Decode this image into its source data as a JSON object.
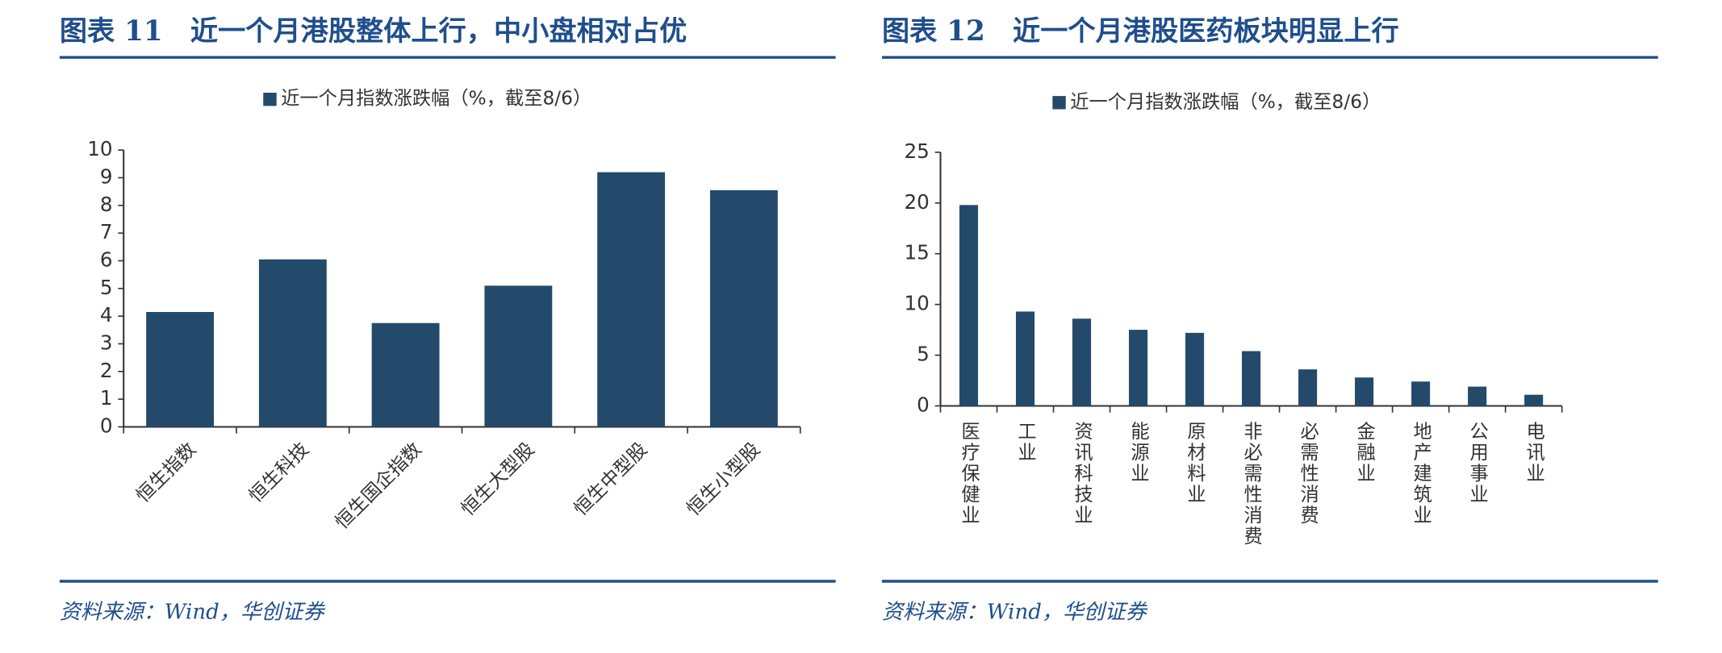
{
  "chart_data": [
    {
      "type": "bar",
      "title": "图表 11　近一个月港股整体上行，中小盘相对占优",
      "source": "资料来源：Wind，华创证券",
      "categories": [
        "恒生指数",
        "恒生科技",
        "恒生国企指数",
        "恒生大型股",
        "恒生中型股",
        "恒生小型股"
      ],
      "series": [
        {
          "name": "近一个月指数涨跌幅（%，截至8/6）",
          "color": "#244a6b",
          "values": [
            4.15,
            6.05,
            3.75,
            5.1,
            9.2,
            8.55
          ]
        }
      ],
      "ylim": [
        0,
        10
      ],
      "yticks": [
        0,
        1,
        2,
        3,
        4,
        5,
        6,
        7,
        8,
        9,
        10
      ],
      "grid": false,
      "legend": "top"
    },
    {
      "type": "bar",
      "title": "图表 12　近一个月港股医药板块明显上行",
      "source": "资料来源：Wind，华创证券",
      "categories": [
        "医疗保健业",
        "工业",
        "资讯科技业",
        "能源业",
        "原材料业",
        "非必需性消费",
        "必需性消费",
        "金融业",
        "地产建筑业",
        "公用事业",
        "电讯业"
      ],
      "series": [
        {
          "name": "近一个月指数涨跌幅（%，截至8/6）",
          "color": "#244a6b",
          "values": [
            19.8,
            9.3,
            8.6,
            7.5,
            7.2,
            5.4,
            3.6,
            2.8,
            2.4,
            1.9,
            1.1
          ]
        }
      ],
      "ylim": [
        0,
        25
      ],
      "yticks": [
        0,
        5,
        10,
        15,
        20,
        25
      ],
      "grid": false,
      "legend": "top"
    }
  ]
}
